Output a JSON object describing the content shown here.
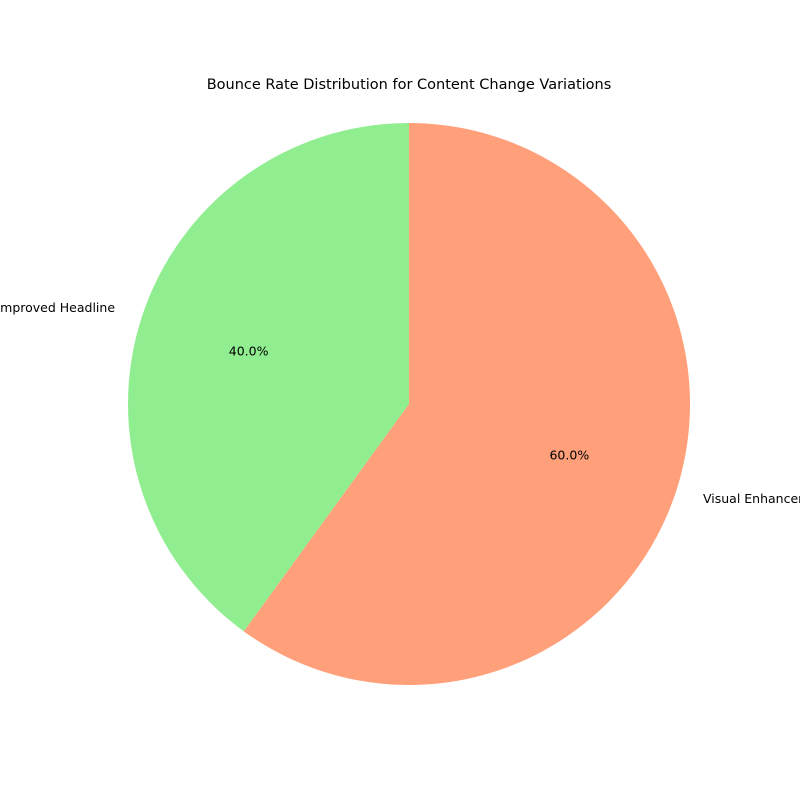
{
  "chart_data": {
    "type": "pie",
    "title": "Bounce Rate Distribution for Content Change Variations",
    "slices": [
      {
        "label": "Improved Headline",
        "value": 40.0,
        "pct_label": "40.0%",
        "color": "#90ee90"
      },
      {
        "label": "Visual Enhancements",
        "value": 60.0,
        "pct_label": "60.0%",
        "color": "#ffa07a"
      }
    ],
    "start_angle_deg": 90,
    "direction": "counterclockwise",
    "legend": "none"
  }
}
